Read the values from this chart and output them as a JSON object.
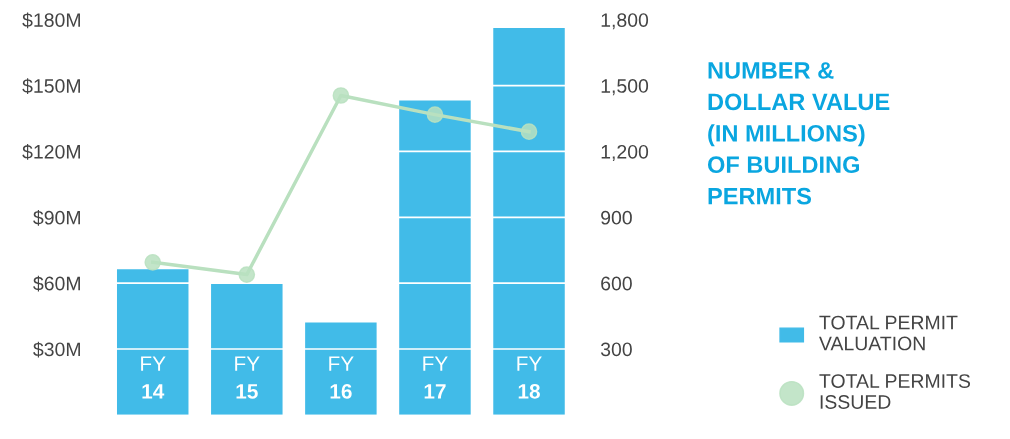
{
  "chart_data": {
    "type": "bar",
    "title": "NUMBER &\nDOLLAR VALUE\n(IN MILLIONS)\nOF BUILDING\nPERMITS",
    "categories": [
      "FY 14",
      "FY 15",
      "FY 16",
      "FY 17",
      "FY 18"
    ],
    "series": [
      {
        "name": "TOTAL PERMIT\nVALUATION",
        "color": "#41bbe8",
        "values": [
          66.3,
          60,
          42.1,
          143.2,
          176.3
        ]
      },
      {
        "name": "TOTAL PERMITS\nISSUED",
        "type": "line",
        "axis": "y2",
        "color": "#b9e0bf",
        "marker": "circle",
        "values": [
          695,
          639,
          1455,
          1368,
          1290
        ]
      }
    ],
    "ylim": [
      0,
      180
    ],
    "yticks": [
      {
        "value": 30,
        "label": "$30M"
      },
      {
        "value": 60,
        "label": "$60M"
      },
      {
        "value": 90,
        "label": "$90M"
      },
      {
        "value": 120,
        "label": "$120M"
      },
      {
        "value": 150,
        "label": "$150M"
      },
      {
        "value": 180,
        "label": "$180M"
      }
    ],
    "y2lim": [
      0,
      1800
    ],
    "y2ticks": [
      {
        "value": 300,
        "label": "300"
      },
      {
        "value": 600,
        "label": "600"
      },
      {
        "value": 900,
        "label": "900"
      },
      {
        "value": 1200,
        "label": "1,200"
      },
      {
        "value": 1500,
        "label": "1,500"
      },
      {
        "value": 1800,
        "label": "1,800"
      }
    ],
    "grid": "y",
    "legend": "right"
  }
}
